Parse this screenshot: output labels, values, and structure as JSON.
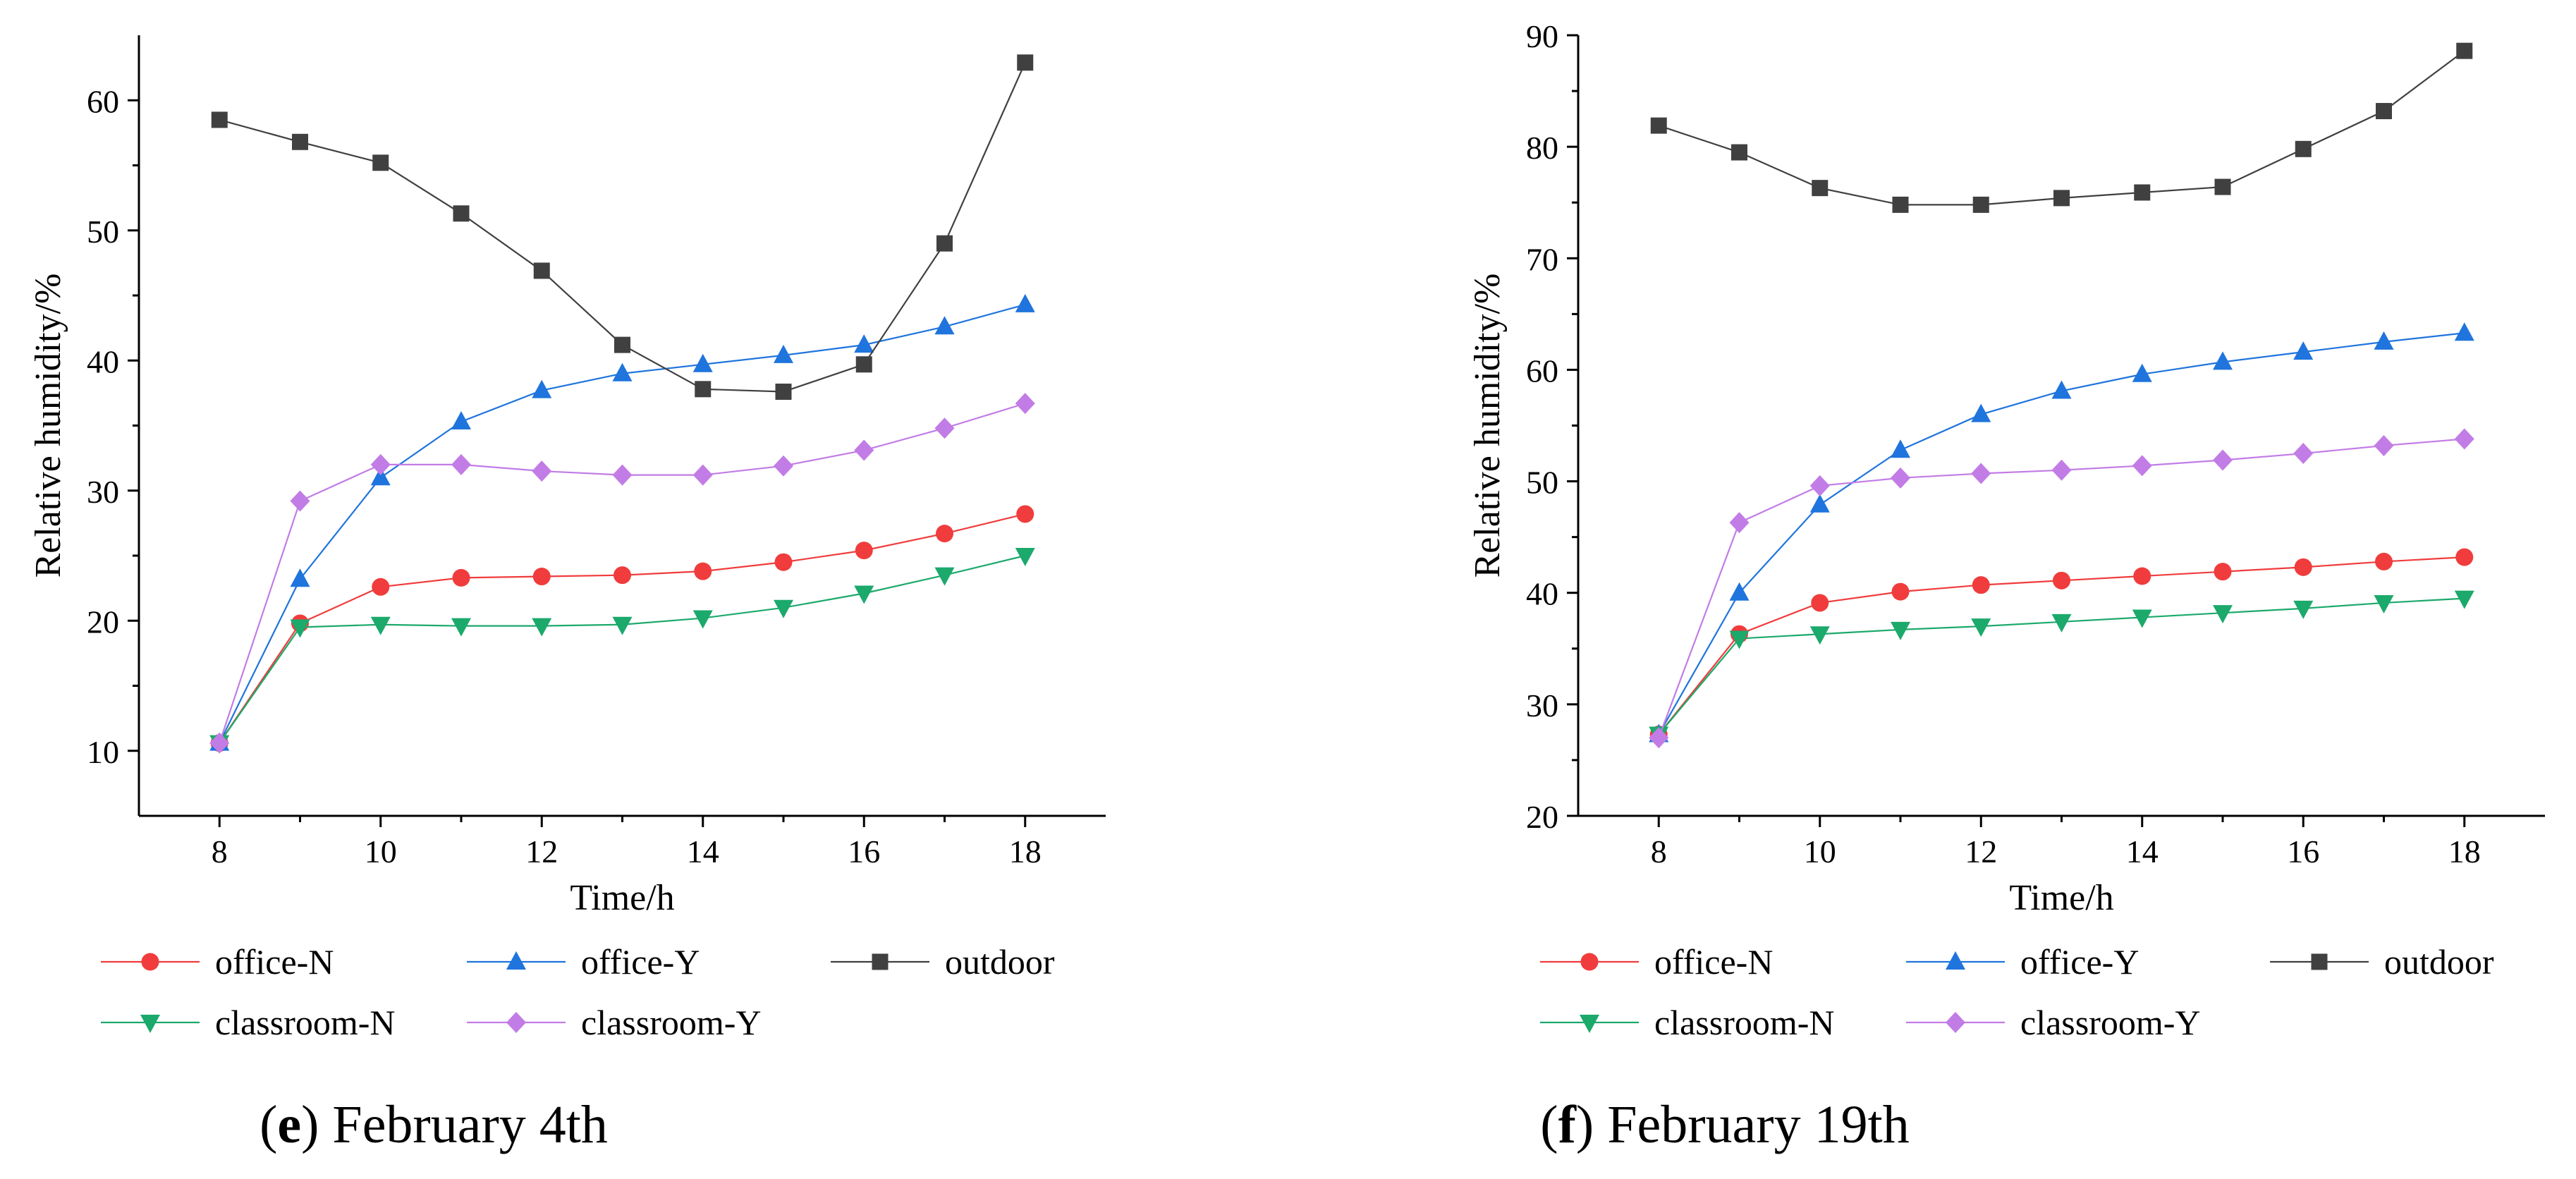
{
  "colors": {
    "office-N": "#f03c3c",
    "office-Y": "#1f74dd",
    "outdoor": "#404040",
    "classroom-N": "#1ca96c",
    "classroom-Y": "#c27ce6",
    "axis": "#000000"
  },
  "chart_data": [
    {
      "type": "line",
      "caption_letter": "e",
      "caption_text": ") February 4th",
      "caption_open": "(",
      "xlabel": "Time/h",
      "ylabel": "Relative humidity/%",
      "xlim": [
        7,
        19
      ],
      "ylim": [
        5,
        65
      ],
      "xticks": [
        8,
        10,
        12,
        14,
        16,
        18
      ],
      "xminor": [
        9,
        11,
        13,
        15,
        17
      ],
      "yticks": [
        10,
        20,
        30,
        40,
        50,
        60
      ],
      "x": [
        8,
        9,
        10,
        11,
        12,
        13,
        14,
        15,
        16,
        17,
        18
      ],
      "series": [
        {
          "name": "office-N",
          "marker": "circle",
          "values": [
            10.6,
            19.8,
            22.6,
            23.3,
            23.4,
            23.5,
            23.8,
            24.5,
            25.4,
            26.7,
            28.2
          ]
        },
        {
          "name": "office-Y",
          "marker": "triangle-up",
          "values": [
            10.6,
            23.2,
            31.0,
            35.3,
            37.7,
            39.0,
            39.7,
            40.4,
            41.2,
            42.6,
            44.3
          ]
        },
        {
          "name": "outdoor",
          "marker": "square",
          "values": [
            58.5,
            56.8,
            55.2,
            51.3,
            46.9,
            41.2,
            37.8,
            37.6,
            39.7,
            49.0,
            62.9
          ]
        },
        {
          "name": "classroom-N",
          "marker": "triangle-down",
          "values": [
            10.6,
            19.5,
            19.7,
            19.6,
            19.6,
            19.7,
            20.2,
            21.0,
            22.1,
            23.5,
            25.0
          ]
        },
        {
          "name": "classroom-Y",
          "marker": "diamond",
          "values": [
            10.6,
            29.2,
            32.0,
            32.0,
            31.5,
            31.2,
            31.2,
            31.9,
            33.1,
            34.8,
            36.7
          ]
        }
      ],
      "legend": [
        "office-N",
        "office-Y",
        "outdoor",
        "classroom-N",
        "classroom-Y"
      ]
    },
    {
      "type": "line",
      "caption_letter": "f",
      "caption_text": ") February 19th",
      "caption_open": "(",
      "xlabel": "Time/h",
      "ylabel": "Relative humidity/%",
      "xlim": [
        7,
        19
      ],
      "ylim": [
        20,
        90
      ],
      "xticks": [
        8,
        10,
        12,
        14,
        16,
        18
      ],
      "xminor": [
        9,
        11,
        13,
        15,
        17
      ],
      "yticks": [
        20,
        30,
        40,
        50,
        60,
        70,
        80,
        90
      ],
      "x": [
        8,
        9,
        10,
        11,
        12,
        13,
        14,
        15,
        16,
        17,
        18
      ],
      "series": [
        {
          "name": "office-N",
          "marker": "circle",
          "values": [
            27.3,
            36.3,
            39.1,
            40.1,
            40.7,
            41.1,
            41.5,
            41.9,
            42.3,
            42.8,
            43.2
          ]
        },
        {
          "name": "office-Y",
          "marker": "triangle-up",
          "values": [
            27.3,
            40.0,
            47.9,
            52.8,
            56.0,
            58.1,
            59.6,
            60.7,
            61.6,
            62.5,
            63.3
          ]
        },
        {
          "name": "outdoor",
          "marker": "square",
          "values": [
            81.9,
            79.5,
            76.3,
            74.8,
            74.8,
            75.4,
            75.9,
            76.4,
            79.8,
            83.2,
            88.6
          ]
        },
        {
          "name": "classroom-N",
          "marker": "triangle-down",
          "values": [
            27.3,
            35.9,
            36.3,
            36.7,
            37.0,
            37.4,
            37.8,
            38.2,
            38.6,
            39.1,
            39.5
          ]
        },
        {
          "name": "classroom-Y",
          "marker": "diamond",
          "values": [
            27.0,
            46.3,
            49.6,
            50.3,
            50.7,
            51.0,
            51.4,
            51.9,
            52.5,
            53.2,
            53.8
          ]
        }
      ],
      "legend": [
        "office-N",
        "office-Y",
        "outdoor",
        "classroom-N",
        "classroom-Y"
      ]
    }
  ]
}
